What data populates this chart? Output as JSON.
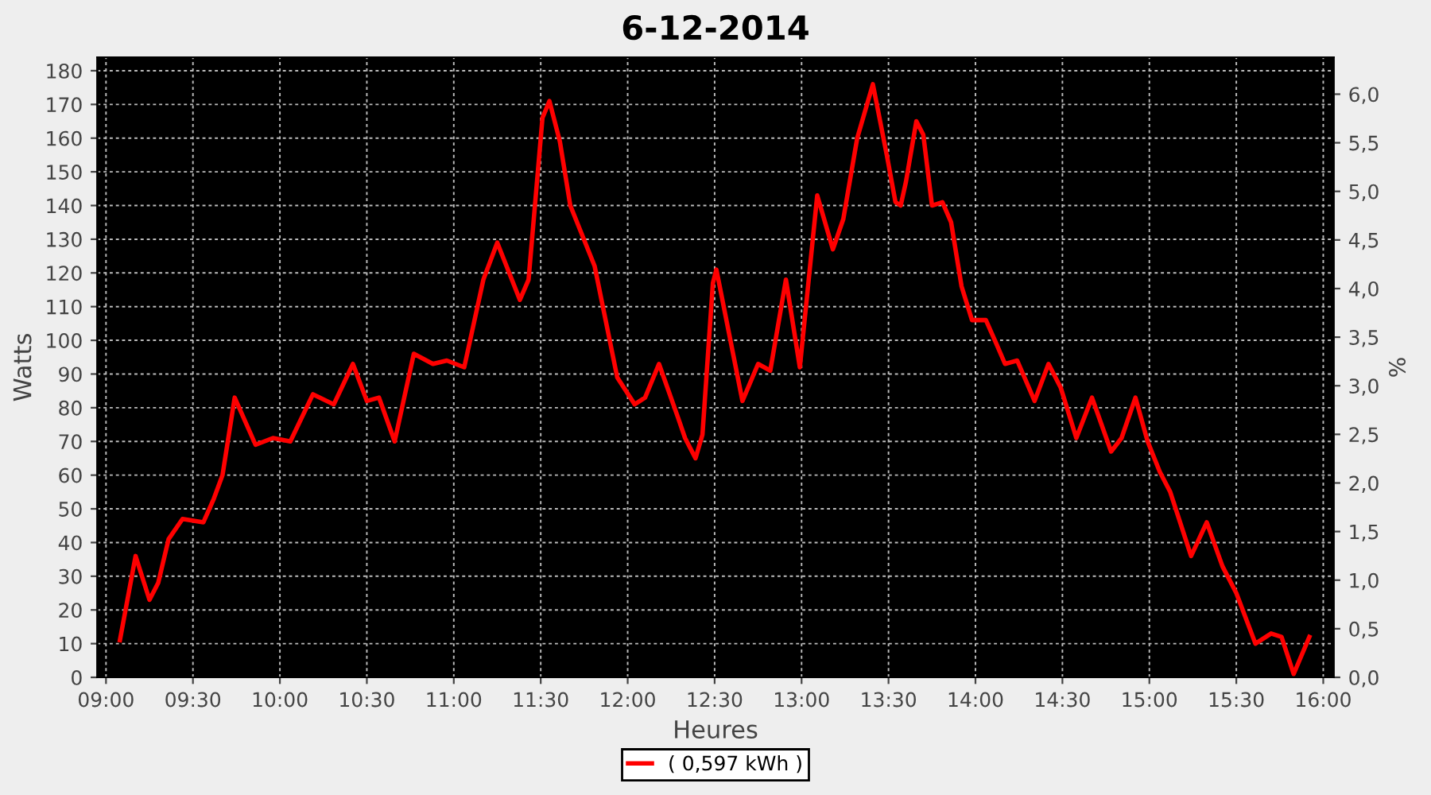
{
  "chart_data": {
    "type": "line",
    "title": "6-12-2014",
    "xlabel": "Heures",
    "ylabel": "Watts",
    "y2label": "%",
    "xlim": [
      8.95,
      16.06
    ],
    "xticks": [
      {
        "value": 9,
        "label": "09:00"
      },
      {
        "value": 9.5,
        "label": "09:30"
      },
      {
        "value": 10,
        "label": "10:00"
      },
      {
        "value": 10.5,
        "label": "10:30"
      },
      {
        "value": 11,
        "label": "11:00"
      },
      {
        "value": 11.5,
        "label": "11:30"
      },
      {
        "value": 12,
        "label": "12:00"
      },
      {
        "value": 12.5,
        "label": "12:30"
      },
      {
        "value": 13,
        "label": "13:00"
      },
      {
        "value": 13.5,
        "label": "13:30"
      },
      {
        "value": 14,
        "label": "14:00"
      },
      {
        "value": 14.5,
        "label": "14:30"
      },
      {
        "value": 15,
        "label": "15:00"
      },
      {
        "value": 15.5,
        "label": "15:30"
      },
      {
        "value": 16,
        "label": "16:00"
      }
    ],
    "ylim": [
      0,
      184
    ],
    "yticks": [
      0,
      10,
      20,
      30,
      40,
      50,
      60,
      70,
      80,
      90,
      100,
      110,
      120,
      130,
      140,
      150,
      160,
      170,
      180
    ],
    "y2lim": [
      0,
      6.38
    ],
    "y2ticks": [
      {
        "value": 0,
        "label": "0,0"
      },
      {
        "value": 0.5,
        "label": "0,5"
      },
      {
        "value": 1,
        "label": "1,0"
      },
      {
        "value": 1.5,
        "label": "1,5"
      },
      {
        "value": 2,
        "label": "2,0"
      },
      {
        "value": 2.5,
        "label": "2,5"
      },
      {
        "value": 3,
        "label": "3,0"
      },
      {
        "value": 3.5,
        "label": "3,5"
      },
      {
        "value": 4,
        "label": "4,0"
      },
      {
        "value": 4.5,
        "label": "4,5"
      },
      {
        "value": 5,
        "label": "5,0"
      },
      {
        "value": 5.5,
        "label": "5,5"
      },
      {
        "value": 6,
        "label": "6,0"
      }
    ],
    "grid": true,
    "legend": "bottom",
    "marker": "none",
    "line_style": "solid",
    "series": [
      {
        "name": "( 0,597 kWh )",
        "color": "#ff0000",
        "x": [
          9.08,
          9.17,
          9.25,
          9.3,
          9.36,
          9.44,
          9.56,
          9.62,
          9.67,
          9.74,
          9.86,
          9.96,
          10.06,
          10.19,
          10.31,
          10.42,
          10.5,
          10.57,
          10.66,
          10.77,
          10.88,
          10.96,
          11.06,
          11.17,
          11.25,
          11.38,
          11.43,
          11.51,
          11.55,
          11.61,
          11.67,
          11.81,
          11.94,
          12.04,
          12.1,
          12.18,
          12.29,
          12.33,
          12.39,
          12.43,
          12.49,
          12.51,
          12.66,
          12.75,
          12.82,
          12.91,
          12.99,
          13.09,
          13.18,
          13.24,
          13.32,
          13.41,
          13.49,
          13.54,
          13.57,
          13.6,
          13.66,
          13.7,
          13.75,
          13.81,
          13.86,
          13.92,
          13.98,
          14.06,
          14.12,
          14.17,
          14.24,
          14.34,
          14.42,
          14.49,
          14.58,
          14.67,
          14.78,
          14.84,
          14.92,
          14.99,
          15.06,
          15.12,
          15.24,
          15.33,
          15.42,
          15.5,
          15.61,
          15.7,
          15.76,
          15.83,
          15.92
        ],
        "values": [
          11,
          36,
          23,
          28,
          41,
          47,
          46,
          53,
          60,
          83,
          69,
          71,
          70,
          84,
          81,
          93,
          82,
          83,
          70,
          96,
          93,
          94,
          92,
          118,
          129,
          112,
          118,
          166,
          171,
          159,
          140,
          122,
          89,
          81,
          83,
          93,
          77,
          71,
          65,
          72,
          117,
          121,
          82,
          93,
          91,
          118,
          92,
          143,
          127,
          136,
          160,
          176,
          155,
          141,
          140,
          147,
          165,
          161,
          140,
          141,
          135,
          116,
          106,
          106,
          99,
          93,
          94,
          82,
          93,
          86,
          71,
          83,
          67,
          71,
          83,
          70,
          61,
          55,
          36,
          46,
          33,
          25,
          10,
          13,
          12,
          1,
          12
        ]
      }
    ]
  }
}
